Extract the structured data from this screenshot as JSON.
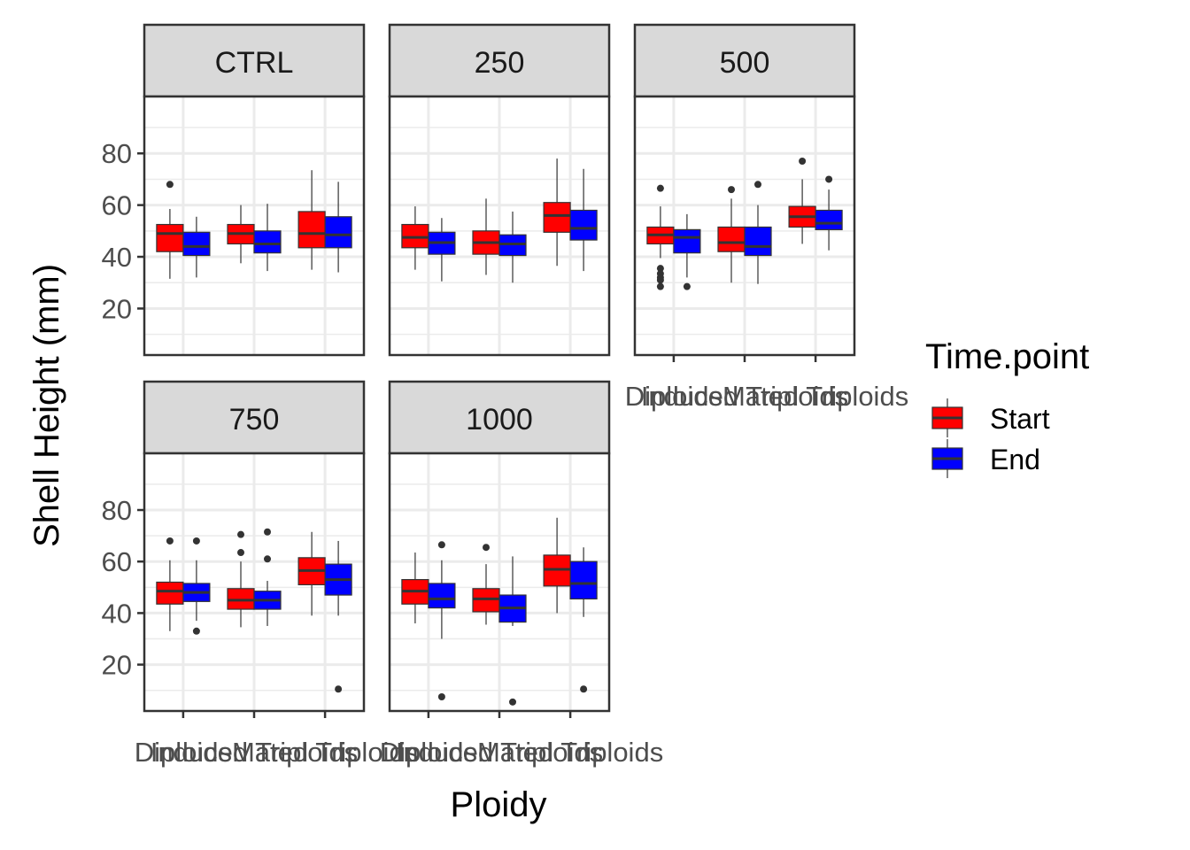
{
  "chart_data": {
    "type": "box",
    "xlabel": "Ploidy",
    "ylabel": "Shell Height (mm)",
    "ylim": [
      2,
      102
    ],
    "yticks": [
      20,
      40,
      60,
      80
    ],
    "categories": [
      "Diploids",
      "Induced Triploids",
      "Mated Triploids"
    ],
    "legend": {
      "title": "Time.point",
      "position": "right",
      "items": [
        {
          "label": "Start",
          "color": "#FF0000"
        },
        {
          "label": "End",
          "color": "#0000FF"
        }
      ]
    },
    "colors": {
      "box_outline": "#333333",
      "panel_border": "#333333",
      "strip_fill": "#D9D9D9",
      "grid": "#EBEBEB"
    },
    "facets": [
      {
        "name": "CTRL",
        "groups": [
          {
            "cat": 0,
            "series": "Start",
            "whisker_low": 31.5,
            "q1": 42,
            "median": 49,
            "q3": 52.5,
            "whisker_high": 58.5,
            "outliers": [
              68
            ]
          },
          {
            "cat": 0,
            "series": "End",
            "whisker_low": 32,
            "q1": 40.5,
            "median": 44,
            "q3": 49.5,
            "whisker_high": 55.5,
            "outliers": []
          },
          {
            "cat": 1,
            "series": "Start",
            "whisker_low": 37.5,
            "q1": 45,
            "median": 49,
            "q3": 52.5,
            "whisker_high": 60,
            "outliers": []
          },
          {
            "cat": 1,
            "series": "End",
            "whisker_low": 34.5,
            "q1": 41.5,
            "median": 45,
            "q3": 50,
            "whisker_high": 60.5,
            "outliers": []
          },
          {
            "cat": 2,
            "series": "Start",
            "whisker_low": 35,
            "q1": 43.5,
            "median": 49,
            "q3": 57.5,
            "whisker_high": 73.5,
            "outliers": []
          },
          {
            "cat": 2,
            "series": "End",
            "whisker_low": 34,
            "q1": 43.5,
            "median": 48.5,
            "q3": 55.5,
            "whisker_high": 69,
            "outliers": []
          }
        ]
      },
      {
        "name": "250",
        "groups": [
          {
            "cat": 0,
            "series": "Start",
            "whisker_low": 35,
            "q1": 43.5,
            "median": 47.5,
            "q3": 52.5,
            "whisker_high": 59.5,
            "outliers": []
          },
          {
            "cat": 0,
            "series": "End",
            "whisker_low": 30.5,
            "q1": 41,
            "median": 45.5,
            "q3": 49.5,
            "whisker_high": 55,
            "outliers": []
          },
          {
            "cat": 1,
            "series": "Start",
            "whisker_low": 33,
            "q1": 41,
            "median": 45.5,
            "q3": 50,
            "whisker_high": 62.5,
            "outliers": []
          },
          {
            "cat": 1,
            "series": "End",
            "whisker_low": 30,
            "q1": 40.5,
            "median": 45,
            "q3": 48.5,
            "whisker_high": 57.5,
            "outliers": []
          },
          {
            "cat": 2,
            "series": "Start",
            "whisker_low": 36.5,
            "q1": 49.5,
            "median": 56,
            "q3": 61,
            "whisker_high": 78,
            "outliers": []
          },
          {
            "cat": 2,
            "series": "End",
            "whisker_low": 34.5,
            "q1": 46.5,
            "median": 51,
            "q3": 58,
            "whisker_high": 74,
            "outliers": []
          }
        ]
      },
      {
        "name": "500",
        "groups": [
          {
            "cat": 0,
            "series": "Start",
            "whisker_low": 39.5,
            "q1": 45,
            "median": 48.5,
            "q3": 51.5,
            "whisker_high": 59.5,
            "outliers": [
              66.5,
              35.5,
              33.5,
              32,
              31,
              28.5
            ]
          },
          {
            "cat": 0,
            "series": "End",
            "whisker_low": 32,
            "q1": 41.5,
            "median": 47.5,
            "q3": 50.5,
            "whisker_high": 56.5,
            "outliers": [
              28.5
            ]
          },
          {
            "cat": 1,
            "series": "Start",
            "whisker_low": 30,
            "q1": 42,
            "median": 45.5,
            "q3": 51.5,
            "whisker_high": 62.5,
            "outliers": [
              66
            ]
          },
          {
            "cat": 1,
            "series": "End",
            "whisker_low": 29.5,
            "q1": 40.5,
            "median": 44,
            "q3": 51.5,
            "whisker_high": 60,
            "outliers": [
              68
            ]
          },
          {
            "cat": 2,
            "series": "Start",
            "whisker_low": 45,
            "q1": 51.5,
            "median": 55.5,
            "q3": 59.5,
            "whisker_high": 70,
            "outliers": [
              77
            ]
          },
          {
            "cat": 2,
            "series": "End",
            "whisker_low": 42.5,
            "q1": 50.5,
            "median": 53,
            "q3": 58,
            "whisker_high": 66,
            "outliers": [
              70
            ]
          }
        ]
      },
      {
        "name": "750",
        "groups": [
          {
            "cat": 0,
            "series": "Start",
            "whisker_low": 33,
            "q1": 43.5,
            "median": 48.5,
            "q3": 52,
            "whisker_high": 60.5,
            "outliers": [
              68
            ]
          },
          {
            "cat": 0,
            "series": "End",
            "whisker_low": 37,
            "q1": 44.5,
            "median": 48,
            "q3": 51.5,
            "whisker_high": 60.5,
            "outliers": [
              68,
              33
            ]
          },
          {
            "cat": 1,
            "series": "Start",
            "whisker_low": 34.5,
            "q1": 41.5,
            "median": 45,
            "q3": 49.5,
            "whisker_high": 60,
            "outliers": [
              70.5,
              63.5
            ]
          },
          {
            "cat": 1,
            "series": "End",
            "whisker_low": 35,
            "q1": 41.5,
            "median": 45,
            "q3": 48.5,
            "whisker_high": 52.5,
            "outliers": [
              71.5,
              61
            ]
          },
          {
            "cat": 2,
            "series": "Start",
            "whisker_low": 39,
            "q1": 51,
            "median": 56.5,
            "q3": 61.5,
            "whisker_high": 71.5,
            "outliers": []
          },
          {
            "cat": 2,
            "series": "End",
            "whisker_low": 39,
            "q1": 47,
            "median": 53,
            "q3": 59,
            "whisker_high": 68,
            "outliers": [
              10.5
            ]
          }
        ]
      },
      {
        "name": "1000",
        "groups": [
          {
            "cat": 0,
            "series": "Start",
            "whisker_low": 36,
            "q1": 43.5,
            "median": 48.5,
            "q3": 53,
            "whisker_high": 63.5,
            "outliers": []
          },
          {
            "cat": 0,
            "series": "End",
            "whisker_low": 30,
            "q1": 42,
            "median": 45.5,
            "q3": 51.5,
            "whisker_high": 60.5,
            "outliers": [
              66.5,
              7.5
            ]
          },
          {
            "cat": 1,
            "series": "Start",
            "whisker_low": 35.5,
            "q1": 40.5,
            "median": 45.5,
            "q3": 49.5,
            "whisker_high": 59,
            "outliers": [
              65.5
            ]
          },
          {
            "cat": 1,
            "series": "End",
            "whisker_low": 35,
            "q1": 36.5,
            "median": 42,
            "q3": 47,
            "whisker_high": 62,
            "outliers": [
              5.5
            ]
          },
          {
            "cat": 2,
            "series": "Start",
            "whisker_low": 40,
            "q1": 50.5,
            "median": 57,
            "q3": 62.5,
            "whisker_high": 77,
            "outliers": []
          },
          {
            "cat": 2,
            "series": "End",
            "whisker_low": 38.5,
            "q1": 45.5,
            "median": 51.5,
            "q3": 60,
            "whisker_high": 65.5,
            "outliers": [
              10.5
            ]
          }
        ]
      }
    ]
  }
}
